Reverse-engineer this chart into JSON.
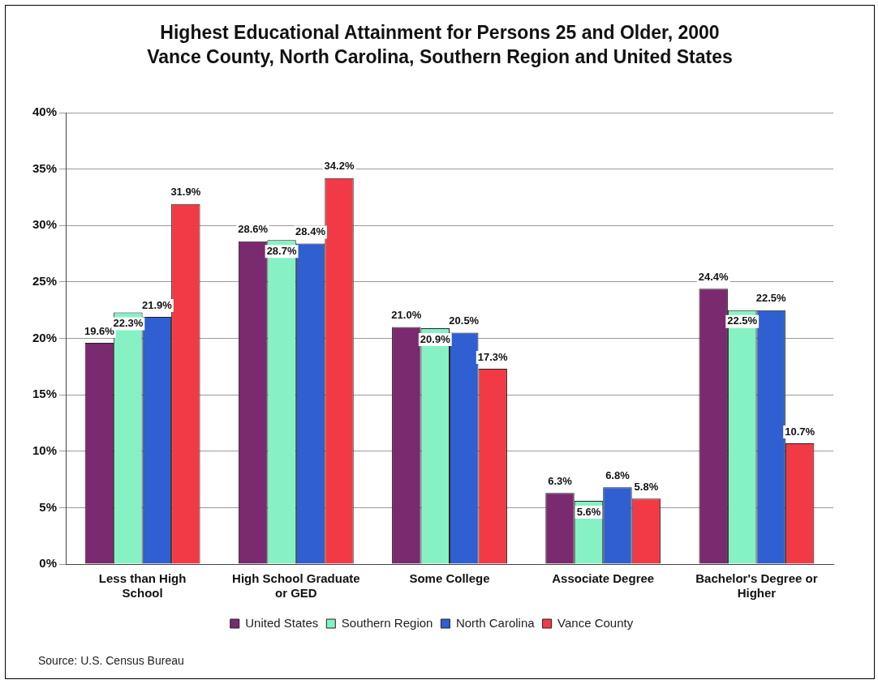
{
  "chart_data": {
    "type": "bar",
    "title": "Highest Educational Attainment for Persons 25 and Older, 2000",
    "subtitle": "Vance County, North Carolina, Southern Region and United States",
    "categories": [
      "Less than High School",
      "High School Graduate or GED",
      "Some College",
      "Associate Degree",
      "Bachelor's Degree or Higher"
    ],
    "series": [
      {
        "name": "United States",
        "color": "#7a2a6e",
        "values": [
          19.6,
          28.6,
          21.0,
          6.3,
          24.4
        ],
        "value_labels": [
          "19.6%",
          "28.6%",
          "21.0%",
          "6.3%",
          "24.4%"
        ]
      },
      {
        "name": "Southern Region",
        "color": "#86f2c4",
        "values": [
          22.3,
          28.7,
          20.9,
          5.6,
          22.5
        ],
        "value_labels": [
          "22.3%",
          "28.7%",
          "20.9%",
          "5.6%",
          "22.5%"
        ]
      },
      {
        "name": "North Carolina",
        "color": "#2f5fd0",
        "values": [
          21.9,
          28.4,
          20.5,
          6.8,
          22.5
        ],
        "value_labels": [
          "21.9%",
          "28.4%",
          "20.5%",
          "6.8%",
          "22.5%"
        ]
      },
      {
        "name": "Vance County",
        "color": "#f23a46",
        "values": [
          31.9,
          34.2,
          17.3,
          5.8,
          10.7
        ],
        "value_labels": [
          "31.9%",
          "34.2%",
          "17.3%",
          "5.8%",
          "10.7%"
        ]
      }
    ],
    "ylim": [
      0,
      40
    ],
    "yticks": [
      {
        "value": 0,
        "label": "0%"
      },
      {
        "value": 5,
        "label": "5%"
      },
      {
        "value": 10,
        "label": "10%"
      },
      {
        "value": 15,
        "label": "15%"
      },
      {
        "value": 20,
        "label": "20%"
      },
      {
        "value": 25,
        "label": "25%"
      },
      {
        "value": 30,
        "label": "30%"
      },
      {
        "value": 35,
        "label": "35%"
      },
      {
        "value": 40,
        "label": "40%"
      }
    ],
    "grid": "y",
    "legend": "bottom",
    "annotations": [
      "Source: U.S. Census Bureau"
    ]
  }
}
